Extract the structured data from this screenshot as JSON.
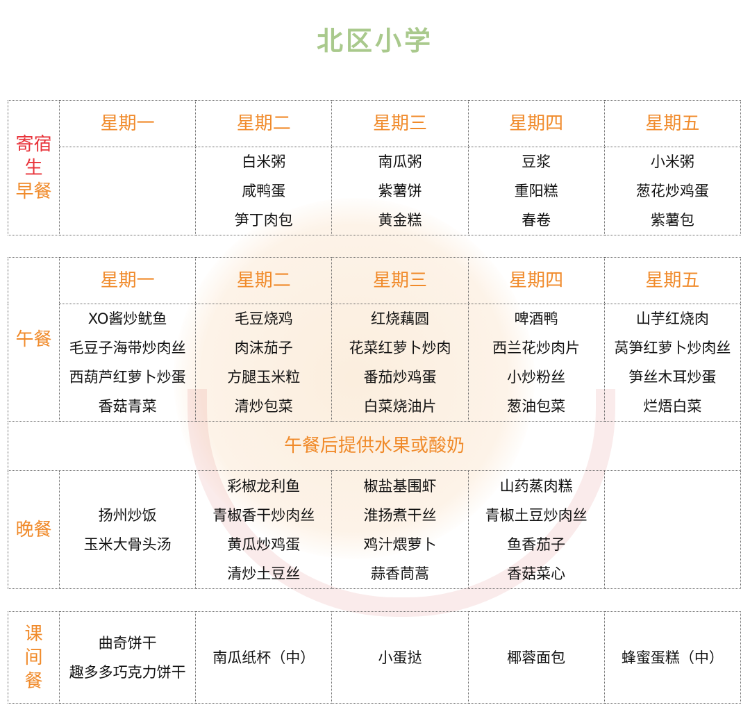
{
  "title": "北区小学",
  "days": [
    "星期一",
    "星期二",
    "星期三",
    "星期四",
    "星期五"
  ],
  "breakfast": {
    "label_line1": "寄宿",
    "label_line2": "生",
    "label_line3": "早餐",
    "menu": [
      [],
      [
        "白米粥",
        "咸鸭蛋",
        "笋丁肉包"
      ],
      [
        "南瓜粥",
        "紫薯饼",
        "黄金糕"
      ],
      [
        "豆浆",
        "重阳糕",
        "春卷"
      ],
      [
        "小米粥",
        "葱花炒鸡蛋",
        "紫薯包"
      ]
    ]
  },
  "lunch": {
    "label": "午餐",
    "menu": [
      [
        "XO酱炒鱿鱼",
        "毛豆子海带炒肉丝",
        "西葫芦红萝卜炒蛋",
        "香菇青菜"
      ],
      [
        "毛豆烧鸡",
        "肉沫茄子",
        "方腿玉米粒",
        "清炒包菜"
      ],
      [
        "红烧藕圆",
        "花菜红萝卜炒肉",
        "番茄炒鸡蛋",
        "白菜烧油片"
      ],
      [
        "啤酒鸭",
        "西兰花炒肉片",
        "小炒粉丝",
        "葱油包菜"
      ],
      [
        "山芋红烧肉",
        "莴笋红萝卜炒肉丝",
        "笋丝木耳炒蛋",
        "烂焐白菜"
      ]
    ],
    "note": "午餐后提供水果或酸奶"
  },
  "dinner": {
    "label": "晚餐",
    "menu": [
      [
        "扬州炒饭",
        "玉米大骨头汤"
      ],
      [
        "彩椒龙利鱼",
        "青椒香干炒肉丝",
        "黄瓜炒鸡蛋",
        "清炒土豆丝"
      ],
      [
        "椒盐基围虾",
        "淮扬煮干丝",
        "鸡汁煨萝卜",
        "蒜香茼蒿"
      ],
      [
        "山药蒸肉糕",
        "青椒土豆炒肉丝",
        "鱼香茄子",
        "香菇菜心"
      ],
      []
    ]
  },
  "snack": {
    "label_chars": [
      "课",
      "间",
      "餐"
    ],
    "menu": [
      [
        "曲奇饼干",
        "趣多多巧克力饼干"
      ],
      [
        "南瓜纸杯（中）"
      ],
      [
        "小蛋挞"
      ],
      [
        "椰蓉面包"
      ],
      [
        "蜂蜜蛋糕（中）"
      ]
    ]
  },
  "colors": {
    "title": "#a9c98c",
    "accent": "#f08a2a",
    "boarding": "#e8333a"
  }
}
